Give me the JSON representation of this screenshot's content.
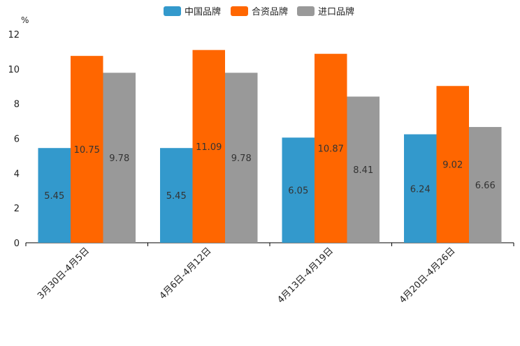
{
  "chart_data": {
    "type": "bar",
    "unit": "%",
    "categories": [
      "3月30日-4月5日",
      "4月6日-4月12日",
      "4月13日-4月19日",
      "4月20日-4月26日"
    ],
    "series": [
      {
        "name": "中国品牌",
        "values": [
          5.45,
          5.45,
          6.05,
          6.24
        ],
        "color": "#3399cc"
      },
      {
        "name": "合资品牌",
        "values": [
          10.75,
          11.09,
          10.87,
          9.02
        ],
        "color": "#ff6600"
      },
      {
        "name": "进口品牌",
        "values": [
          9.78,
          9.78,
          8.41,
          6.66
        ],
        "color": "#999999"
      }
    ],
    "ylim": [
      0,
      12
    ],
    "yticks": [
      0,
      2,
      4,
      6,
      8,
      10,
      12
    ],
    "legend_position": "top-center",
    "grid": false
  }
}
